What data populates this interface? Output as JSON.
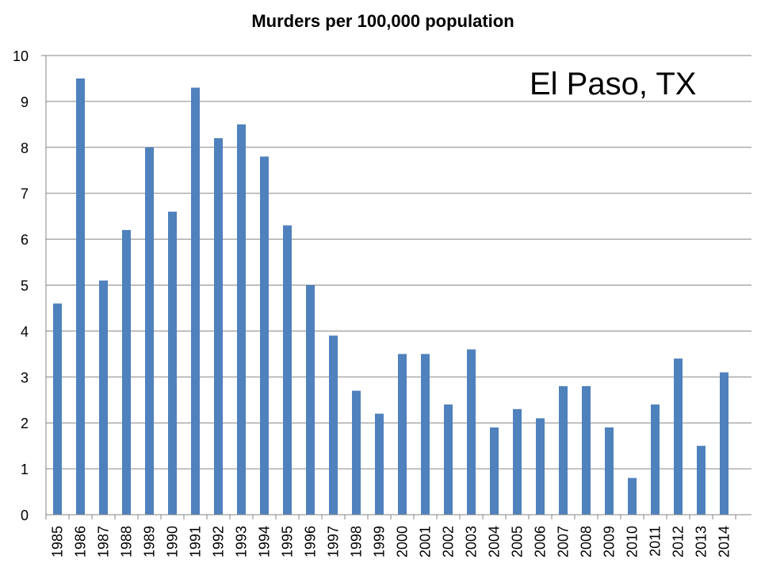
{
  "chart_data": {
    "type": "bar",
    "title": "Murders per 100,000 population",
    "annotation": "El Paso, TX",
    "xlabel": "",
    "ylabel": "",
    "ylim": [
      0,
      10
    ],
    "yticks": [
      "0",
      "1",
      "2",
      "3",
      "4",
      "5",
      "6",
      "7",
      "8",
      "9",
      "10"
    ],
    "grid": true,
    "legend": "none",
    "categories": [
      "1985",
      "1986",
      "1987",
      "1988",
      "1989",
      "1990",
      "1991",
      "1992",
      "1993",
      "1994",
      "1995",
      "1996",
      "1997",
      "1998",
      "1999",
      "2000",
      "2001",
      "2002",
      "2003",
      "2004",
      "2005",
      "2006",
      "2007",
      "2008",
      "2009",
      "2010",
      "2011",
      "2012",
      "2013",
      "2014"
    ],
    "series": [
      {
        "name": "Murders per 100,000 population",
        "values": [
          4.6,
          9.5,
          5.1,
          6.2,
          8.0,
          6.6,
          9.3,
          8.2,
          8.5,
          7.8,
          6.3,
          5.0,
          3.9,
          2.7,
          2.2,
          3.5,
          3.5,
          2.4,
          3.6,
          1.9,
          2.3,
          2.1,
          2.8,
          2.8,
          1.9,
          0.8,
          2.4,
          3.4,
          1.5,
          3.1
        ],
        "color": "#4f81bd"
      }
    ]
  }
}
